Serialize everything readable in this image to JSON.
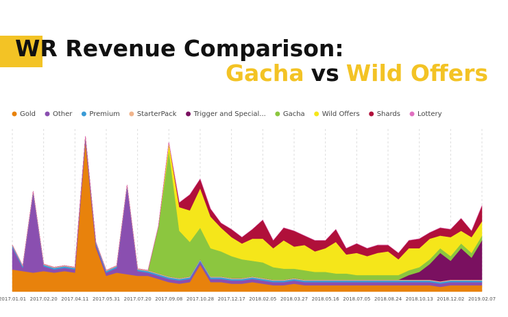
{
  "chart_data": {
    "type": "stacked-area",
    "title": "WR Revenue Comparison:",
    "subtitle": [
      "Gacha",
      "vs",
      "Wild Offers"
    ],
    "categories": [
      "2017.01.01",
      null,
      null,
      "2017.02.20",
      null,
      null,
      "2017.04.11",
      null,
      null,
      "2017.05.31",
      null,
      null,
      "2017.07.20",
      null,
      null,
      "2017.09.08",
      null,
      null,
      "2017.10.28",
      null,
      null,
      "2017.12.17",
      null,
      null,
      "2018.02.05",
      null,
      null,
      "2018.03.27",
      null,
      null,
      "2018.05.16",
      null,
      null,
      "2018.07.05",
      null,
      null,
      "2018.08.24",
      null,
      null,
      "2018.10.13",
      null,
      null,
      "2018.12.02",
      null,
      null,
      "2019.02.07"
    ],
    "ylim": [
      0,
      100
    ],
    "grid": true,
    "series": [
      {
        "name": "Gold",
        "color": "#e8820c",
        "values": [
          14,
          13,
          12,
          13,
          12,
          13,
          12,
          95,
          28,
          10,
          12,
          11,
          10,
          10,
          8,
          6,
          5,
          6,
          17,
          6,
          6,
          5,
          5,
          6,
          5,
          4,
          4,
          5,
          4,
          4,
          4,
          4,
          4,
          4,
          4,
          4,
          4,
          4,
          4,
          4,
          4,
          3,
          4,
          4,
          4,
          4
        ]
      },
      {
        "name": "Other",
        "color": "#8a4fb0",
        "values": [
          14,
          2,
          50,
          3,
          2,
          2,
          2,
          2,
          2,
          2,
          3,
          55,
          3,
          2,
          2,
          2,
          2,
          2,
          2,
          2,
          2,
          2,
          2,
          2,
          2,
          2,
          2,
          2,
          2,
          2,
          2,
          2,
          2,
          2,
          2,
          2,
          2,
          2,
          2,
          2,
          2,
          2,
          2,
          2,
          2,
          2
        ]
      },
      {
        "name": "Premium",
        "color": "#3a9bd6",
        "values": [
          1,
          1,
          1,
          1,
          1,
          1,
          1,
          1,
          1,
          1,
          1,
          1,
          1,
          1,
          1,
          1,
          1,
          1,
          1,
          1,
          1,
          1,
          1,
          1,
          1,
          1,
          1,
          1,
          1,
          1,
          1,
          1,
          1,
          1,
          1,
          1,
          1,
          1,
          1,
          1,
          1,
          1,
          1,
          1,
          1,
          1
        ]
      },
      {
        "name": "StarterPack",
        "color": "#f0b48c",
        "values": [
          0.5,
          0.5,
          0.5,
          0.5,
          0.5,
          0.5,
          0.5,
          0.5,
          0.5,
          0.5,
          0.5,
          0.5,
          0.5,
          0.5,
          0.5,
          0.5,
          0.5,
          0.5,
          0.5,
          0.5,
          0.5,
          0.5,
          0.5,
          0.5,
          0.5,
          0.5,
          0.5,
          0.5,
          0.5,
          0.5,
          0.5,
          0.5,
          0.5,
          0.5,
          0.5,
          0.5,
          0.5,
          0.5,
          0.5,
          0.5,
          0.5,
          0.5,
          0.5,
          0.5,
          0.5,
          0.5
        ]
      },
      {
        "name": "Trigger and Special...",
        "color": "#7a1060",
        "values": [
          0,
          0,
          0,
          0,
          0,
          0,
          0,
          0,
          0,
          0,
          0,
          0,
          0,
          0,
          0,
          0,
          0,
          0,
          0,
          0,
          0,
          0,
          0,
          0,
          0,
          0,
          0,
          0,
          0,
          0,
          0,
          0,
          0,
          0,
          0,
          0,
          0,
          0,
          3,
          5,
          10,
          18,
          12,
          20,
          14,
          25
        ]
      },
      {
        "name": "Gacha",
        "color": "#8cc63f",
        "values": [
          0,
          0,
          0,
          0,
          0,
          0,
          0,
          0,
          0,
          0,
          0,
          0,
          0,
          0,
          30,
          80,
          30,
          22,
          20,
          18,
          16,
          14,
          12,
          10,
          10,
          8,
          7,
          6,
          6,
          5,
          5,
          4,
          4,
          3,
          3,
          3,
          3,
          3,
          3,
          3,
          3,
          3,
          3,
          3,
          3,
          3
        ]
      },
      {
        "name": "Wild Offers",
        "color": "#f5e61a",
        "values": [
          0,
          0,
          0,
          0,
          0,
          0,
          0,
          0,
          0,
          0,
          0,
          0,
          0,
          0,
          0,
          5,
          15,
          20,
          25,
          20,
          15,
          12,
          10,
          14,
          15,
          12,
          18,
          14,
          16,
          13,
          15,
          20,
          12,
          14,
          12,
          14,
          15,
          10,
          14,
          12,
          13,
          8,
          12,
          8,
          10,
          9
        ]
      },
      {
        "name": "Shards",
        "color": "#b0103a",
        "values": [
          0,
          0,
          0,
          0,
          0,
          0,
          0,
          0,
          0,
          0,
          0,
          0,
          0,
          0,
          0,
          0,
          3,
          10,
          6,
          5,
          3,
          5,
          4,
          6,
          12,
          5,
          8,
          10,
          6,
          7,
          5,
          8,
          4,
          6,
          5,
          5,
          4,
          4,
          5,
          6,
          4,
          5,
          5,
          8,
          4,
          10
        ]
      },
      {
        "name": "Lottery",
        "color": "#e070c0",
        "values": [
          0,
          0,
          0,
          0,
          0,
          0,
          0,
          0,
          0,
          0,
          0,
          0,
          0,
          0,
          0,
          0,
          0,
          0,
          0,
          0,
          0,
          0,
          0,
          0,
          0,
          0,
          0,
          0,
          0,
          0,
          0,
          0,
          0,
          0,
          0,
          0,
          0,
          0,
          0,
          0,
          0,
          0,
          0,
          0,
          0,
          0
        ]
      }
    ]
  }
}
